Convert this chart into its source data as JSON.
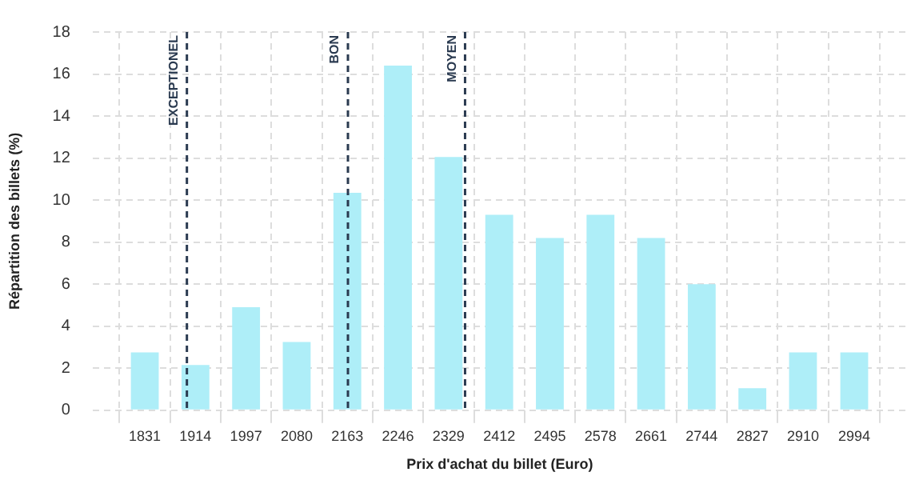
{
  "chart_data": {
    "type": "bar",
    "xlabel": "Prix d'achat du billet (Euro)",
    "ylabel": "Répartition des billets (%)",
    "x": [
      1831,
      1914,
      1997,
      2080,
      2163,
      2246,
      2329,
      2412,
      2495,
      2578,
      2661,
      2744,
      2827,
      2910,
      2994
    ],
    "values": [
      2.75,
      2.15,
      4.9,
      3.25,
      10.35,
      16.4,
      12.05,
      9.3,
      8.2,
      9.3,
      8.2,
      6.0,
      1.05,
      2.75,
      2.75
    ],
    "color": "#aeeef8",
    "xlim": [
      1790,
      3036
    ],
    "xticks": [
      1831,
      1914,
      1997,
      2080,
      2163,
      2246,
      2329,
      2412,
      2495,
      2578,
      2661,
      2744,
      2827,
      2910,
      2994
    ],
    "ylim": [
      0,
      18
    ],
    "yticks": [
      0,
      2,
      4,
      6,
      8,
      10,
      12,
      14,
      16,
      18
    ],
    "grid": true,
    "legend": false,
    "ref_lines": [
      {
        "axis": "x",
        "value": 1900,
        "label": "EXCEPTIONEL",
        "color": "#2a3a50",
        "line_style": "dashed"
      },
      {
        "axis": "x",
        "value": 2164,
        "label": "BON",
        "color": "#2a3a50",
        "line_style": "dashed"
      },
      {
        "axis": "x",
        "value": 2356,
        "label": "MOYEN",
        "color": "#2a3a50",
        "line_style": "dashed"
      }
    ]
  }
}
